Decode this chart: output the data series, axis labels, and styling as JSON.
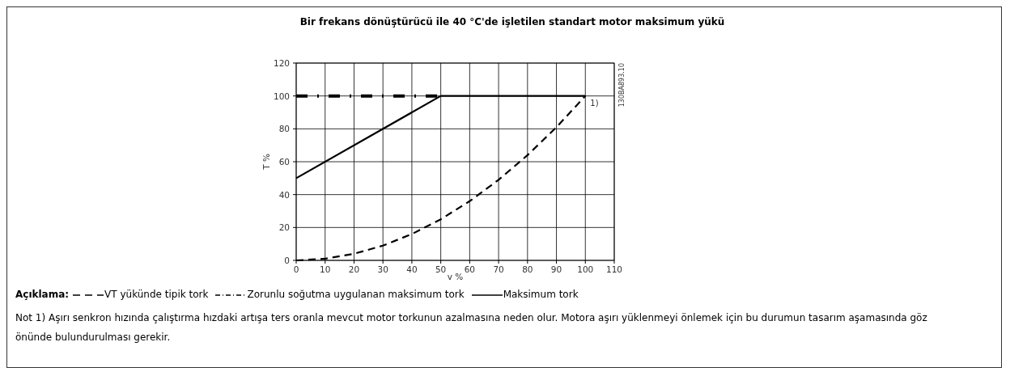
{
  "chart_data": {
    "type": "line",
    "title": "Bir frekans dönüştürücü ile 40 °C'de işletilen standart motor maksimum yükü",
    "xlabel": "v %",
    "ylabel": "T %",
    "xlim": [
      0,
      110
    ],
    "xticks": [
      0,
      10,
      20,
      30,
      40,
      50,
      60,
      70,
      80,
      90,
      100,
      110
    ],
    "ylim": [
      0,
      120
    ],
    "yticks": [
      0,
      20,
      40,
      60,
      80,
      100,
      120
    ],
    "grid": true,
    "legend": "bottom",
    "legend_title": "Açıklama:",
    "marker": "none",
    "series": [
      {
        "name": "VT yükünde tipik tork",
        "color": "#000000",
        "line_style": "dashed",
        "x": [
          0,
          10,
          20,
          30,
          40,
          50,
          60,
          70,
          80,
          90,
          100
        ],
        "values": [
          0,
          1,
          4,
          9,
          16,
          25,
          36,
          49,
          64,
          81,
          100
        ]
      },
      {
        "name": "Zorunlu soğutma uygulanan maksimum tork",
        "color": "#000000",
        "line_style": "dashdot",
        "x": [
          0,
          50
        ],
        "values": [
          100,
          100
        ]
      },
      {
        "name": "Maksimum tork",
        "color": "#000000",
        "line_style": "solid",
        "x": [
          0,
          50,
          100
        ],
        "values": [
          50,
          100,
          100
        ]
      }
    ],
    "annotations": [
      {
        "text": "1)",
        "x": 100,
        "y": 100
      },
      "130BA893.10",
      "Not 1) Aşırı senkron hızında çalıştırma hızdaki artışa ters oranla mevcut motor torkunun azalmasına neden olur. Motora aşırı yüklenmeyi önlemek için bu durumun tasarım aşamasında göz önünde bulundurulması gerekir."
    ]
  }
}
